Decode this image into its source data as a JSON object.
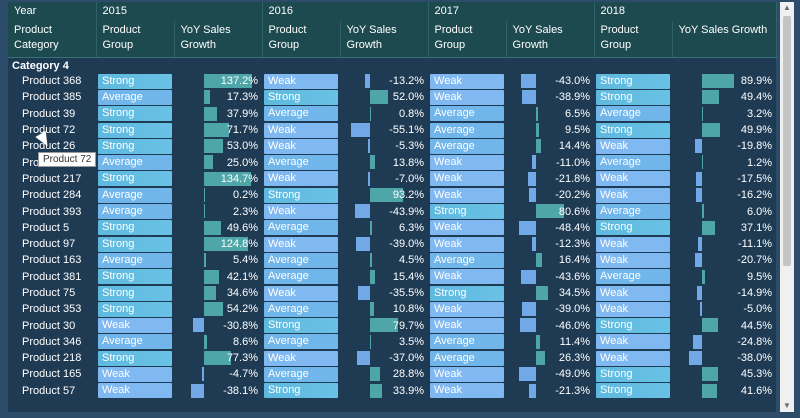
{
  "headers": {
    "year_label": "Year",
    "category_label": "Product Category",
    "group_label": "Product Group",
    "yoy_label": "YoY Sales Growth",
    "years": [
      "2015",
      "2016",
      "2017",
      "2018"
    ]
  },
  "category": "Category 4",
  "tooltip": "Product 72",
  "rows": [
    {
      "name": "Product 368",
      "c": [
        [
          "Strong",
          "137.2%",
          137.2
        ],
        [
          "Weak",
          "-13.2%",
          -13.2
        ],
        [
          "Weak",
          "-43.0%",
          -43.0
        ],
        [
          "Strong",
          "89.9%",
          89.9
        ]
      ]
    },
    {
      "name": "Product 385",
      "c": [
        [
          "Average",
          "17.3%",
          17.3
        ],
        [
          "Strong",
          "52.0%",
          52.0
        ],
        [
          "Weak",
          "-38.9%",
          -38.9
        ],
        [
          "Strong",
          "49.4%",
          49.4
        ]
      ]
    },
    {
      "name": "Product 39",
      "c": [
        [
          "Strong",
          "37.9%",
          37.9
        ],
        [
          "Average",
          "0.8%",
          0.8
        ],
        [
          "Average",
          "6.5%",
          6.5
        ],
        [
          "Average",
          "3.2%",
          3.2
        ]
      ]
    },
    {
      "name": "Product 72",
      "c": [
        [
          "Strong",
          "71.7%",
          71.7
        ],
        [
          "Weak",
          "-55.1%",
          -55.1
        ],
        [
          "Average",
          "9.5%",
          9.5
        ],
        [
          "Strong",
          "49.9%",
          49.9
        ]
      ]
    },
    {
      "name": "Product 26",
      "c": [
        [
          "Strong",
          "53.0%",
          53.0
        ],
        [
          "Weak",
          "-5.3%",
          -5.3
        ],
        [
          "Average",
          "14.4%",
          14.4
        ],
        [
          "Weak",
          "-19.8%",
          -19.8
        ]
      ]
    },
    {
      "name": "Product 10",
      "c": [
        [
          "Average",
          "25.0%",
          25.0
        ],
        [
          "Average",
          "13.8%",
          13.8
        ],
        [
          "Weak",
          "-11.0%",
          -11.0
        ],
        [
          "Average",
          "1.2%",
          1.2
        ]
      ]
    },
    {
      "name": "Product 217",
      "c": [
        [
          "Strong",
          "134.7%",
          134.7
        ],
        [
          "Weak",
          "-7.0%",
          -7.0
        ],
        [
          "Weak",
          "-21.8%",
          -21.8
        ],
        [
          "Weak",
          "-17.5%",
          -17.5
        ]
      ]
    },
    {
      "name": "Product 284",
      "c": [
        [
          "Average",
          "0.2%",
          0.2
        ],
        [
          "Strong",
          "93.2%",
          93.2
        ],
        [
          "Weak",
          "-20.2%",
          -20.2
        ],
        [
          "Weak",
          "-16.2%",
          -16.2
        ]
      ]
    },
    {
      "name": "Product 393",
      "c": [
        [
          "Average",
          "2.3%",
          2.3
        ],
        [
          "Weak",
          "-43.9%",
          -43.9
        ],
        [
          "Strong",
          "80.6%",
          80.6
        ],
        [
          "Average",
          "6.0%",
          6.0
        ]
      ]
    },
    {
      "name": "Product 5",
      "c": [
        [
          "Strong",
          "49.6%",
          49.6
        ],
        [
          "Average",
          "6.3%",
          6.3
        ],
        [
          "Weak",
          "-48.4%",
          -48.4
        ],
        [
          "Strong",
          "37.1%",
          37.1
        ]
      ]
    },
    {
      "name": "Product 97",
      "c": [
        [
          "Strong",
          "124.8%",
          124.8
        ],
        [
          "Weak",
          "-39.0%",
          -39.0
        ],
        [
          "Weak",
          "-12.3%",
          -12.3
        ],
        [
          "Weak",
          "-11.1%",
          -11.1
        ]
      ]
    },
    {
      "name": "Product 163",
      "c": [
        [
          "Average",
          "5.4%",
          5.4
        ],
        [
          "Average",
          "4.5%",
          4.5
        ],
        [
          "Average",
          "16.4%",
          16.4
        ],
        [
          "Weak",
          "-20.7%",
          -20.7
        ]
      ]
    },
    {
      "name": "Product 381",
      "c": [
        [
          "Strong",
          "42.1%",
          42.1
        ],
        [
          "Average",
          "15.4%",
          15.4
        ],
        [
          "Weak",
          "-43.6%",
          -43.6
        ],
        [
          "Average",
          "9.5%",
          9.5
        ]
      ]
    },
    {
      "name": "Product 75",
      "c": [
        [
          "Strong",
          "34.6%",
          34.6
        ],
        [
          "Weak",
          "-35.5%",
          -35.5
        ],
        [
          "Strong",
          "34.5%",
          34.5
        ],
        [
          "Weak",
          "-14.9%",
          -14.9
        ]
      ]
    },
    {
      "name": "Product 353",
      "c": [
        [
          "Strong",
          "54.2%",
          54.2
        ],
        [
          "Average",
          "10.8%",
          10.8
        ],
        [
          "Weak",
          "-39.0%",
          -39.0
        ],
        [
          "Weak",
          "-5.0%",
          -5.0
        ]
      ]
    },
    {
      "name": "Product 30",
      "c": [
        [
          "Weak",
          "-30.8%",
          -30.8
        ],
        [
          "Strong",
          "79.7%",
          79.7
        ],
        [
          "Weak",
          "-46.0%",
          -46.0
        ],
        [
          "Strong",
          "44.5%",
          44.5
        ]
      ]
    },
    {
      "name": "Product 346",
      "c": [
        [
          "Average",
          "8.6%",
          8.6
        ],
        [
          "Average",
          "3.5%",
          3.5
        ],
        [
          "Average",
          "11.4%",
          11.4
        ],
        [
          "Weak",
          "-24.8%",
          -24.8
        ]
      ]
    },
    {
      "name": "Product 218",
      "c": [
        [
          "Strong",
          "77.3%",
          77.3
        ],
        [
          "Weak",
          "-37.0%",
          -37.0
        ],
        [
          "Average",
          "26.3%",
          26.3
        ],
        [
          "Weak",
          "-38.0%",
          -38.0
        ]
      ]
    },
    {
      "name": "Product 165",
      "c": [
        [
          "Weak",
          "-4.7%",
          -4.7
        ],
        [
          "Average",
          "28.8%",
          28.8
        ],
        [
          "Weak",
          "-49.0%",
          -49.0
        ],
        [
          "Strong",
          "45.3%",
          45.3
        ]
      ]
    },
    {
      "name": "Product 57",
      "c": [
        [
          "Weak",
          "-38.1%",
          -38.1
        ],
        [
          "Strong",
          "33.9%",
          33.9
        ],
        [
          "Weak",
          "-21.3%",
          -21.3
        ],
        [
          "Strong",
          "41.6%",
          41.6
        ]
      ]
    }
  ]
}
